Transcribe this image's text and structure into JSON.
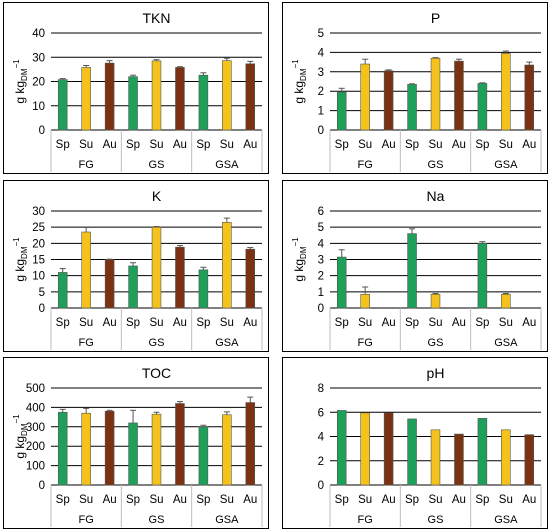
{
  "colors": {
    "Sp": "#1ea05a",
    "Su": "#f5c21b",
    "Au": "#7a3213"
  },
  "chart_data": [
    {
      "type": "bar",
      "title": "TKN",
      "ylabel_main": "g kg",
      "ylabel_sub": "DM",
      "ylabel_sup": "−1",
      "ylim": [
        0,
        40
      ],
      "yticks": [
        0,
        10,
        20,
        30,
        40
      ],
      "groups": [
        "FG",
        "GS",
        "GSA"
      ],
      "categories": [
        "Sp",
        "Su",
        "Au"
      ],
      "values": [
        [
          20.8,
          25.8,
          27.6
        ],
        [
          22.0,
          28.5,
          25.8
        ],
        [
          22.6,
          28.6,
          27.3
        ]
      ],
      "errors": [
        [
          0.4,
          0.8,
          1.0
        ],
        [
          0.6,
          0.5,
          0.3
        ],
        [
          1.0,
          1.0,
          1.0
        ]
      ],
      "grid": true
    },
    {
      "type": "bar",
      "title": "P",
      "ylabel_main": "g kg",
      "ylabel_sub": "DM",
      "ylabel_sup": "−1",
      "ylim": [
        0,
        5
      ],
      "yticks": [
        0,
        1,
        2,
        3,
        4,
        5
      ],
      "groups": [
        "FG",
        "GS",
        "GSA"
      ],
      "categories": [
        "Sp",
        "Su",
        "Au"
      ],
      "values": [
        [
          1.95,
          3.4,
          3.05
        ],
        [
          2.35,
          3.7,
          3.55
        ],
        [
          2.4,
          3.95,
          3.35
        ]
      ],
      "errors": [
        [
          0.2,
          0.25,
          0.05
        ],
        [
          0.03,
          0.03,
          0.1
        ],
        [
          0.03,
          0.12,
          0.15
        ]
      ],
      "grid": true
    },
    {
      "type": "bar",
      "title": "K",
      "ylabel_main": "g kg",
      "ylabel_sub": "DM",
      "ylabel_sup": "−1",
      "ylim": [
        0,
        30
      ],
      "yticks": [
        0,
        5,
        10,
        15,
        20,
        25,
        30
      ],
      "groups": [
        "FG",
        "GS",
        "GSA"
      ],
      "categories": [
        "Sp",
        "Su",
        "Au"
      ],
      "values": [
        [
          11.0,
          23.5,
          15.0
        ],
        [
          13.0,
          25.0,
          18.8
        ],
        [
          11.8,
          26.5,
          18.2
        ]
      ],
      "errors": [
        [
          1.2,
          1.4,
          0.1
        ],
        [
          1.0,
          0.2,
          0.5
        ],
        [
          0.8,
          1.3,
          0.5
        ]
      ],
      "grid": true
    },
    {
      "type": "bar",
      "title": "Na",
      "ylabel_main": "g kg",
      "ylabel_sub": "DM",
      "ylabel_sup": "−1",
      "ylim": [
        0,
        6
      ],
      "yticks": [
        0,
        1,
        2,
        3,
        4,
        5,
        6
      ],
      "groups": [
        "FG",
        "GS",
        "GSA"
      ],
      "categories": [
        "Sp",
        "Su",
        "Au"
      ],
      "values": [
        [
          3.15,
          0.85,
          0
        ],
        [
          4.6,
          0.85,
          0
        ],
        [
          4.0,
          0.85,
          0
        ]
      ],
      "errors": [
        [
          0.45,
          0.45,
          0
        ],
        [
          0.3,
          0.05,
          0
        ],
        [
          0.1,
          0.05,
          0
        ]
      ],
      "grid": true
    },
    {
      "type": "bar",
      "title": "TOC",
      "ylabel_main": "g kg",
      "ylabel_sub": "DM",
      "ylabel_sup": "−1",
      "ylim": [
        0,
        500
      ],
      "yticks": [
        0,
        100,
        200,
        300,
        400,
        500
      ],
      "groups": [
        "FG",
        "GS",
        "GSA"
      ],
      "categories": [
        "Sp",
        "Su",
        "Au"
      ],
      "values": [
        [
          375,
          370,
          380
        ],
        [
          320,
          365,
          420
        ],
        [
          300,
          362,
          425
        ]
      ],
      "errors": [
        [
          15,
          25,
          5
        ],
        [
          65,
          10,
          10
        ],
        [
          8,
          15,
          28
        ]
      ],
      "grid": true
    },
    {
      "type": "bar",
      "title": "pH",
      "ylim": [
        0,
        8
      ],
      "yticks": [
        0,
        2,
        4,
        6,
        8
      ],
      "groups": [
        "FG",
        "GS",
        "GSA"
      ],
      "categories": [
        "Sp",
        "Su",
        "Au"
      ],
      "values": [
        [
          6.15,
          5.95,
          5.95
        ],
        [
          5.45,
          4.55,
          4.2
        ],
        [
          5.5,
          4.55,
          4.15
        ]
      ],
      "errors": [
        [
          0,
          0,
          0
        ],
        [
          0,
          0,
          0
        ],
        [
          0,
          0,
          0
        ]
      ],
      "grid": true
    }
  ]
}
